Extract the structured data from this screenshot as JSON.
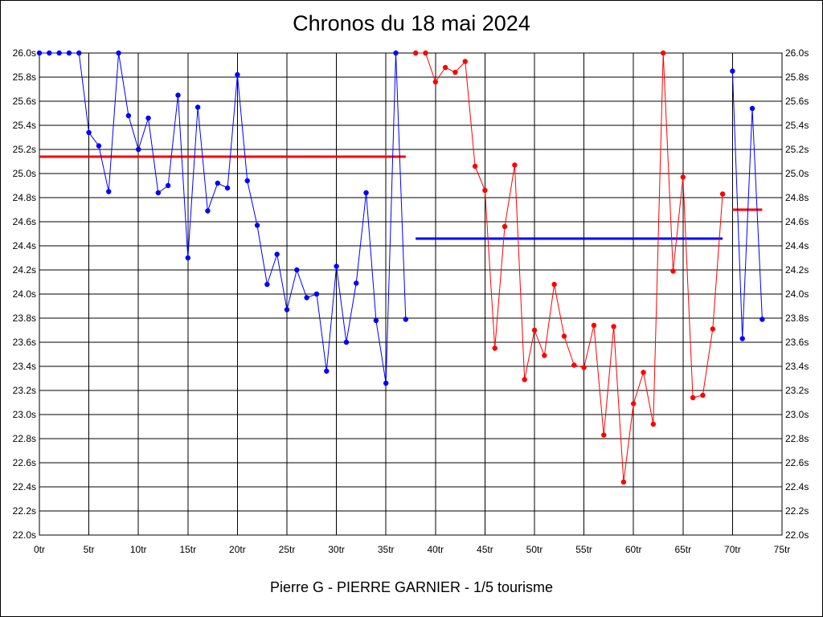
{
  "title": "Chronos du 18 mai 2024",
  "footer": "Pierre G - PIERRE GARNIER - 1/5 tourisme",
  "chart_data": {
    "type": "line",
    "title": "Chronos du 18 mai 2024",
    "xlim": [
      0,
      75
    ],
    "ylim": [
      22.0,
      26.0
    ],
    "x_ticks": [
      0,
      5,
      10,
      15,
      20,
      25,
      30,
      35,
      40,
      45,
      50,
      55,
      60,
      65,
      70,
      75
    ],
    "x_tick_labels": [
      "0tr",
      "5tr",
      "10tr",
      "15tr",
      "20tr",
      "25tr",
      "30tr",
      "35tr",
      "40tr",
      "45tr",
      "50tr",
      "55tr",
      "60tr",
      "65tr",
      "70tr",
      "75tr"
    ],
    "y_ticks": [
      22.0,
      22.2,
      22.4,
      22.6,
      22.8,
      23.0,
      23.2,
      23.4,
      23.6,
      23.8,
      24.0,
      24.2,
      24.4,
      24.6,
      24.8,
      25.0,
      25.2,
      25.4,
      25.6,
      25.8,
      26.0
    ],
    "y_tick_labels": [
      "22.0s",
      "22.2s",
      "22.4s",
      "22.6s",
      "22.8s",
      "23.0s",
      "23.2s",
      "23.4s",
      "23.6s",
      "23.8s",
      "24.0s",
      "24.2s",
      "24.4s",
      "24.6s",
      "24.8s",
      "25.0s",
      "25.2s",
      "25.4s",
      "25.6s",
      "25.8s",
      "26.0s"
    ],
    "grid": true,
    "right_axis_labels": true,
    "series": [
      {
        "color": "#0000ff",
        "x": [
          0,
          1,
          2,
          3,
          4,
          5,
          6,
          7,
          8,
          9,
          10,
          11,
          12,
          13,
          14,
          15,
          16,
          17,
          18,
          19,
          20,
          21,
          22,
          23,
          24,
          25,
          26,
          27,
          28,
          29,
          30,
          31,
          32,
          33,
          34,
          35,
          36,
          37
        ],
        "values": [
          26.0,
          26.0,
          26.0,
          26.0,
          26.0,
          25.34,
          25.23,
          24.85,
          26.0,
          25.48,
          25.2,
          25.46,
          24.84,
          24.9,
          25.65,
          24.3,
          25.55,
          24.69,
          24.92,
          24.88,
          25.82,
          24.94,
          24.57,
          24.08,
          24.33,
          23.87,
          24.2,
          23.97,
          24.0,
          23.36,
          24.23,
          23.6,
          24.09,
          24.84,
          23.78,
          23.26,
          26.0,
          23.79
        ]
      },
      {
        "color": "#ff0000",
        "x": [
          38,
          39,
          40,
          41,
          42,
          43,
          44,
          45,
          46,
          47,
          48,
          49,
          50,
          51,
          52,
          53,
          54,
          55,
          56,
          57,
          58,
          59,
          60,
          61,
          62,
          63,
          64,
          65,
          66,
          67,
          68,
          69
        ],
        "values": [
          26.0,
          26.0,
          25.76,
          25.88,
          25.84,
          25.93,
          25.06,
          24.86,
          23.55,
          24.56,
          25.07,
          23.29,
          23.7,
          23.49,
          24.08,
          23.65,
          23.41,
          23.39,
          23.74,
          22.83,
          23.73,
          22.44,
          23.09,
          23.35,
          22.92,
          26.0,
          24.19,
          24.97,
          23.14,
          23.16,
          23.71,
          24.83
        ]
      },
      {
        "color": "#0000ff",
        "x": [
          70,
          71,
          72,
          73
        ],
        "values": [
          25.85,
          23.63,
          25.54,
          23.79
        ]
      }
    ],
    "mean_lines": [
      {
        "color": "#ff0000",
        "x": [
          0,
          37
        ],
        "value": 25.14
      },
      {
        "color": "#0000ff",
        "x": [
          38,
          69
        ],
        "value": 24.46
      },
      {
        "color": "#ff0000",
        "x": [
          70,
          73
        ],
        "value": 24.7
      }
    ]
  }
}
